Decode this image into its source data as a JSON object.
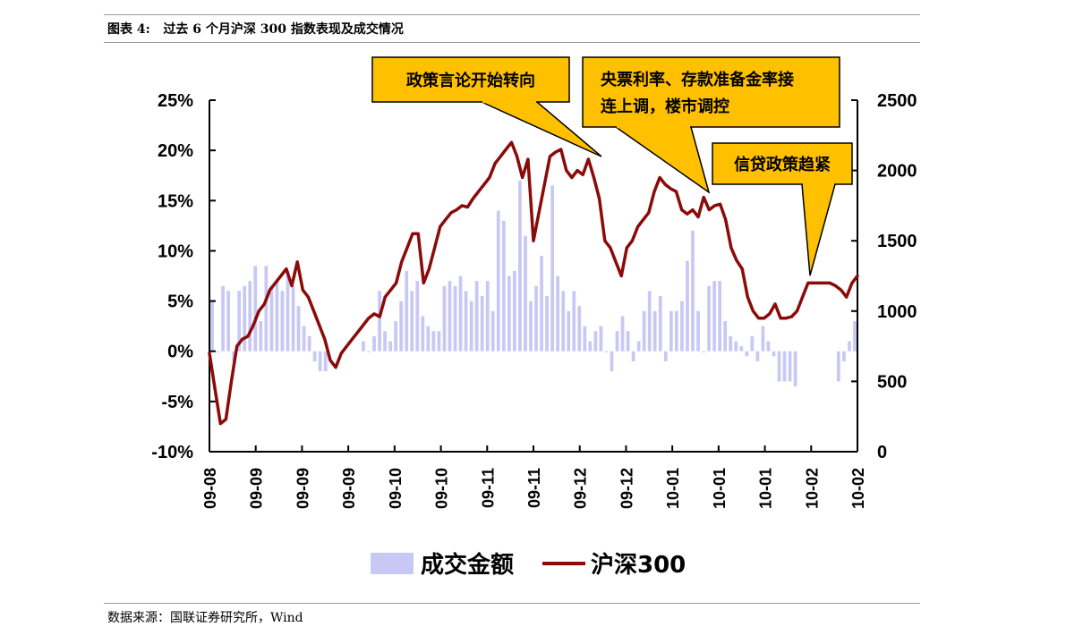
{
  "header": {
    "figure_title": "图表 4:   过去 6 个月沪深 300 指数表现及成交情况"
  },
  "footer": {
    "source": "数据来源：国联证券研究所，Wind"
  },
  "colors": {
    "bar": "#c8c8f5",
    "line": "#8b0a0a",
    "callout_fill": "#ffc000",
    "axis": "#000000"
  },
  "chart_data": {
    "type": "bar+line",
    "x_tick_labels": [
      "09-08",
      "09-09",
      "09-09",
      "09-09",
      "09-10",
      "09-10",
      "09-11",
      "09-11",
      "09-12",
      "09-12",
      "10-01",
      "10-01",
      "10-01",
      "10-02",
      "10-02"
    ],
    "left_axis": {
      "ylim": [
        -10,
        25
      ],
      "ticks": [
        -10,
        -5,
        0,
        5,
        10,
        15,
        20,
        25
      ],
      "tick_labels": [
        "-10%",
        "-5%",
        "0%",
        "5%",
        "10%",
        "15%",
        "20%",
        "25%"
      ]
    },
    "right_axis": {
      "ylim": [
        0,
        2500
      ],
      "ticks": [
        0,
        500,
        1000,
        1500,
        2000,
        2500
      ],
      "tick_labels": [
        "0",
        "500",
        "1000",
        "1500",
        "2000",
        "2500"
      ]
    },
    "series": [
      {
        "name": "成交金额",
        "type": "bar",
        "axis": "left",
        "values": [
          5,
          0,
          6.5,
          6,
          -1,
          6,
          6.5,
          7,
          8.5,
          3,
          8.5,
          6.5,
          7,
          6,
          8,
          6.5,
          4.5,
          2.5,
          1.5,
          -1,
          -2,
          -2,
          null,
          null,
          null,
          null,
          null,
          null,
          1,
          0,
          1.5,
          6,
          2,
          1,
          3,
          5,
          8,
          6,
          7,
          3.5,
          2.5,
          2,
          2,
          6.5,
          7,
          6.5,
          7.5,
          6,
          5,
          7,
          5.5,
          7,
          4,
          14,
          13,
          7.5,
          8,
          17,
          11.5,
          5,
          6.5,
          9.5,
          5.5,
          16.5,
          7.5,
          6,
          4,
          6,
          4.5,
          2.5,
          1,
          2,
          2.5,
          0,
          -2,
          2,
          3.5,
          2,
          -1,
          1,
          4,
          6,
          4,
          5.5,
          -1,
          4,
          4,
          5,
          9,
          12,
          4,
          0,
          6.5,
          7,
          7,
          3,
          1.5,
          1,
          0.5,
          -0.5,
          1.5,
          -1,
          2.5,
          1,
          -0.5,
          -3,
          -3,
          -3,
          -3.5,
          null,
          null,
          null,
          null,
          null,
          null,
          null,
          -3,
          -1,
          1,
          3
        ]
      },
      {
        "name": "沪深300",
        "type": "line",
        "axis": "right",
        "values": [
          700,
          450,
          200,
          230,
          500,
          750,
          800,
          820,
          900,
          1000,
          1050,
          1150,
          1200,
          1250,
          1300,
          1180,
          1350,
          1150,
          1100,
          1000,
          900,
          800,
          650,
          600,
          700,
          750,
          800,
          850,
          900,
          950,
          980,
          960,
          1100,
          1150,
          1200,
          1350,
          1450,
          1550,
          1550,
          1200,
          1300,
          1450,
          1600,
          1650,
          1700,
          1720,
          1750,
          1740,
          1800,
          1850,
          1900,
          1950,
          2050,
          2100,
          2150,
          2200,
          2100,
          1950,
          2080,
          1500,
          1700,
          1900,
          2100,
          2130,
          2150,
          2000,
          1950,
          2000,
          1970,
          2080,
          1950,
          1800,
          1500,
          1450,
          1350,
          1250,
          1450,
          1500,
          1600,
          1650,
          1700,
          1850,
          1950,
          1900,
          1870,
          1850,
          1720,
          1690,
          1720,
          1670,
          1810,
          1720,
          1750,
          1760,
          1650,
          1450,
          1360,
          1300,
          1100,
          1000,
          950,
          950,
          980,
          1050,
          950,
          950,
          960,
          1000,
          1100,
          1200,
          1200,
          1200,
          1200,
          1200,
          1180,
          1150,
          1100,
          1200,
          1250
        ]
      }
    ],
    "annotations": [
      "政策言论开始转向",
      "央票利率、存款准备金率接连上调，楼市调控",
      "信贷政策趋紧"
    ],
    "annotation_lines": [
      [
        "政策言论开始转向"
      ],
      [
        "央票利率、存款准备金率接",
        "连上调，楼市调控"
      ],
      [
        "信贷政策趋紧"
      ]
    ],
    "legend_placement": "bottom-center",
    "grid": false
  }
}
